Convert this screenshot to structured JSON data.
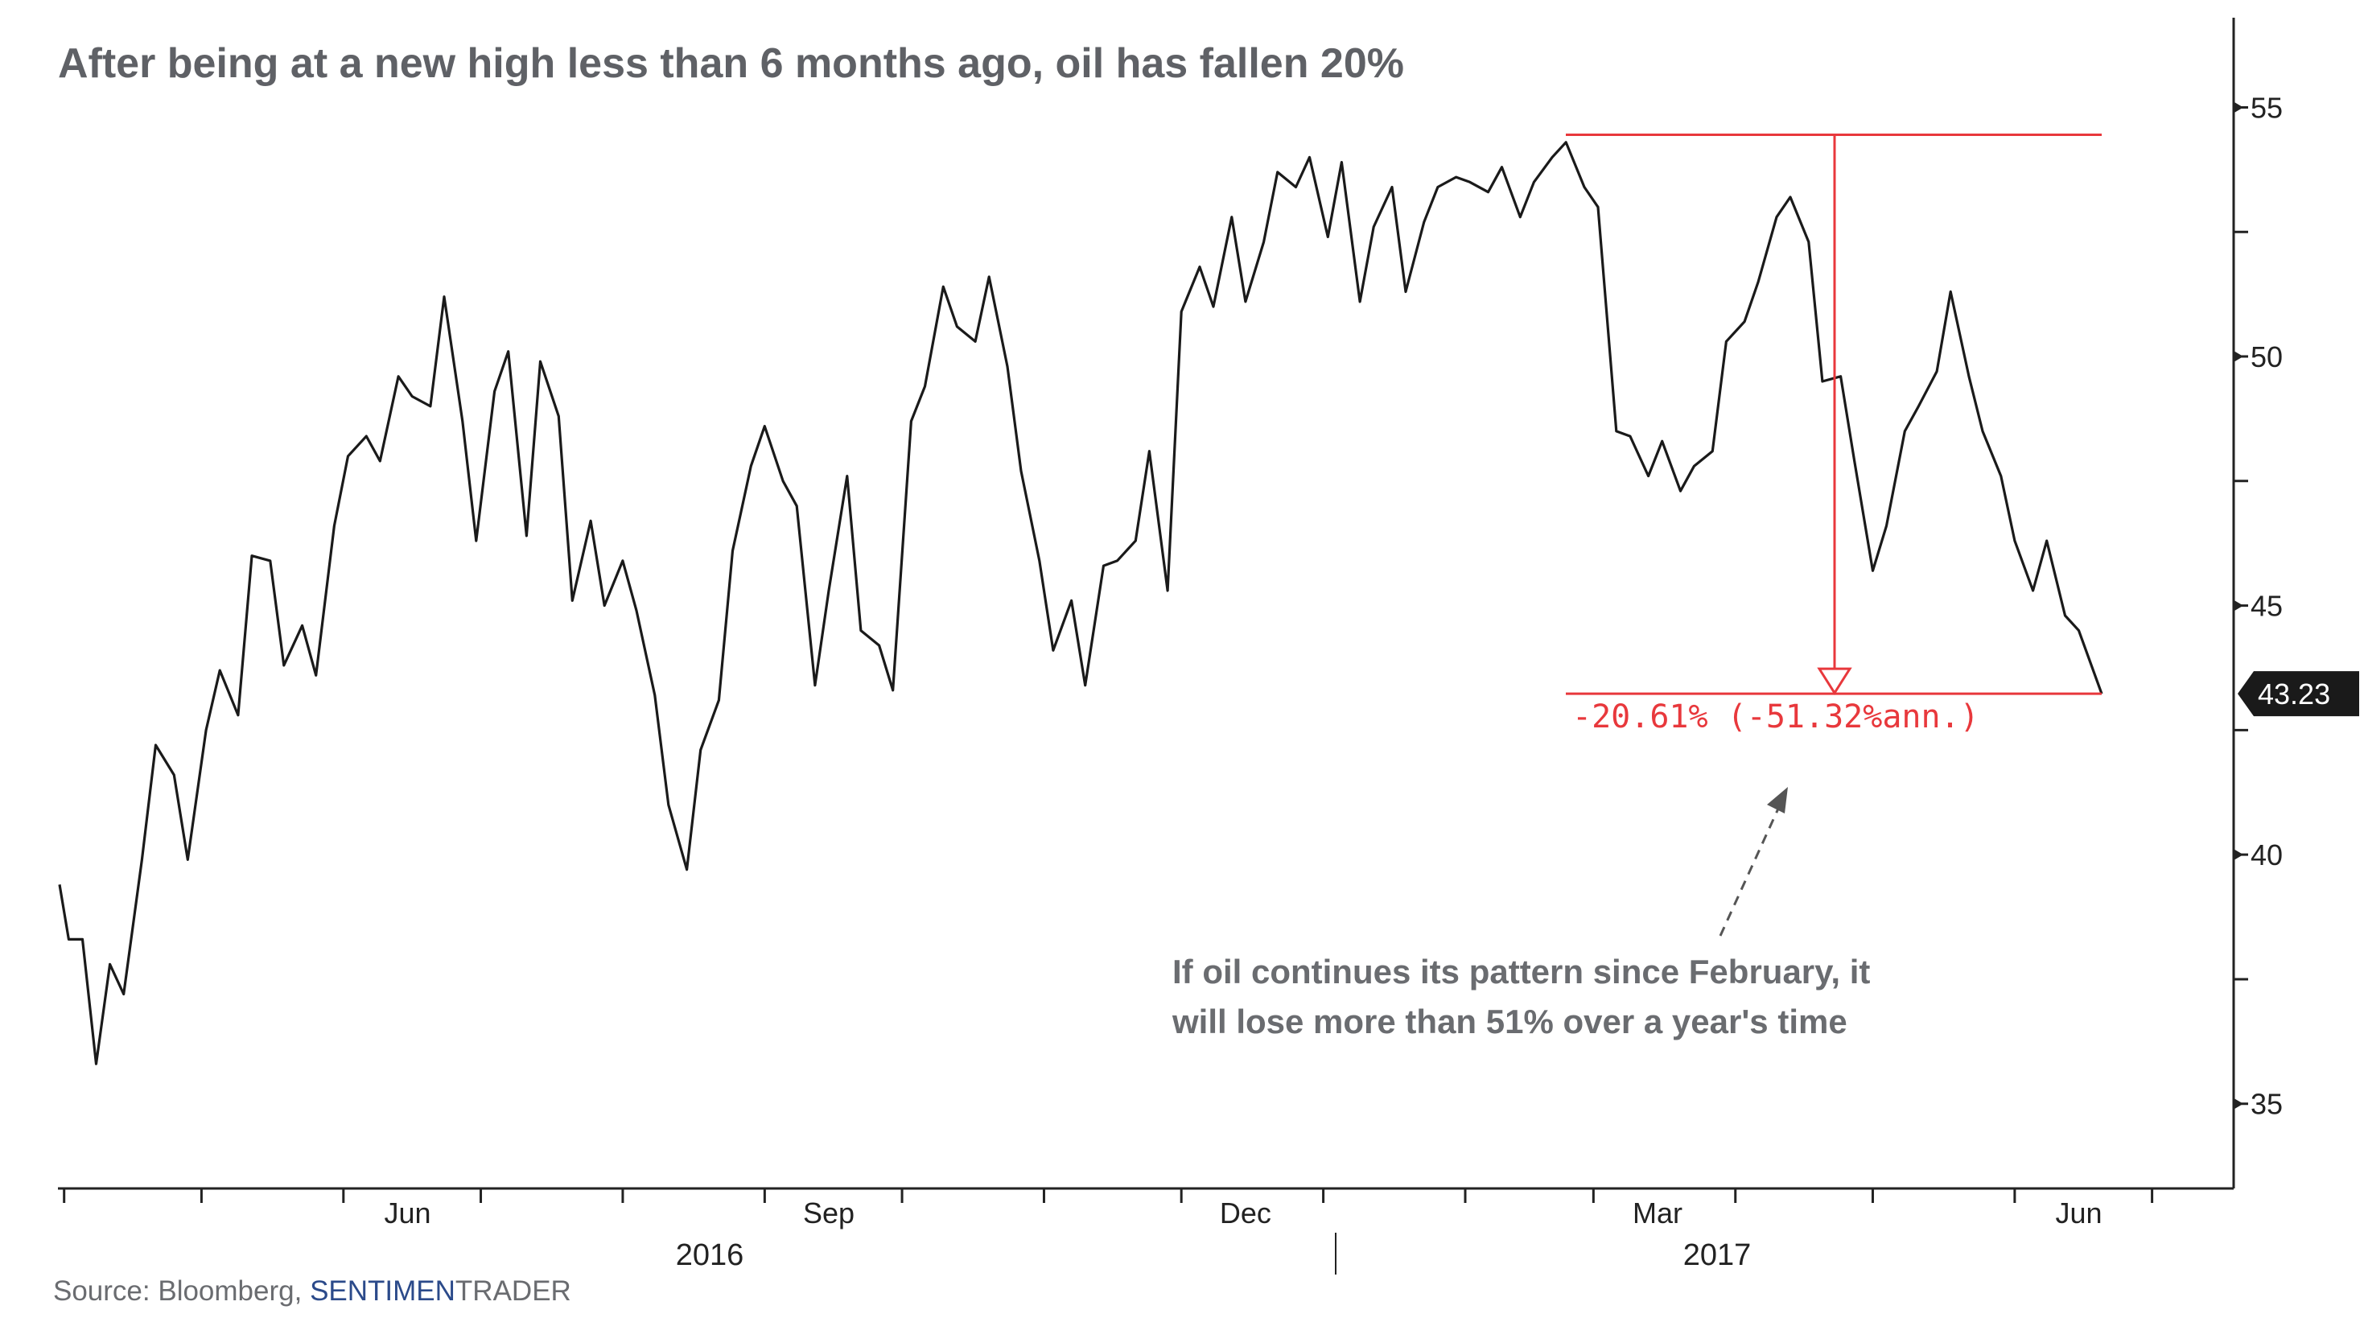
{
  "title": "After being at a new high less than 6 months ago, oil has fallen 20%",
  "annotation": {
    "line1": "If oil continues its pattern since February, it",
    "line2": "will lose more than 51% over a year's time"
  },
  "drawdown_label": "-20.61% (-51.32%ann.)",
  "last_value_label": "43.23",
  "source": {
    "prefix": "Source: Bloomberg, ",
    "brand_a": "SENTIMEN",
    "brand_b": "TRADER"
  },
  "colors": {
    "line": "#1a1a1a",
    "drawdown": "#e8383c",
    "title": "#5f6166",
    "brand": "#2b4a8a",
    "last_value_bg": "#1a1a1a"
  },
  "chart_data": {
    "type": "line",
    "title": "After being at a new high less than 6 months ago, oil has fallen 20%",
    "xlabel": "",
    "ylabel": "",
    "ylim": [
      33.3,
      56.8
    ],
    "yticks": [
      "35",
      "40",
      "45",
      "50",
      "55"
    ],
    "x_month_labels": [
      "Jun",
      "Sep",
      "Dec",
      "Mar",
      "Jun"
    ],
    "x_year_labels": [
      "2016",
      "2017"
    ],
    "grid": false,
    "series": [
      {
        "x": [
          "2016-03-31",
          "2016-04-02",
          "2016-04-05",
          "2016-04-08",
          "2016-04-11",
          "2016-04-14",
          "2016-04-18",
          "2016-04-21",
          "2016-04-25",
          "2016-04-28",
          "2016-05-02",
          "2016-05-05",
          "2016-05-09",
          "2016-05-12",
          "2016-05-16",
          "2016-05-19",
          "2016-05-23",
          "2016-05-26",
          "2016-05-30",
          "2016-06-02",
          "2016-06-06",
          "2016-06-09",
          "2016-06-13",
          "2016-06-16",
          "2016-06-20",
          "2016-06-23",
          "2016-06-27",
          "2016-06-30",
          "2016-07-04",
          "2016-07-07",
          "2016-07-11",
          "2016-07-14",
          "2016-07-18",
          "2016-07-21",
          "2016-07-25",
          "2016-07-28",
          "2016-08-01",
          "2016-08-04",
          "2016-08-08",
          "2016-08-11",
          "2016-08-15",
          "2016-08-18",
          "2016-08-22",
          "2016-08-25",
          "2016-08-29",
          "2016-09-01",
          "2016-09-05",
          "2016-09-08",
          "2016-09-12",
          "2016-09-15",
          "2016-09-19",
          "2016-09-22",
          "2016-09-26",
          "2016-09-29",
          "2016-10-03",
          "2016-10-06",
          "2016-10-10",
          "2016-10-13",
          "2016-10-17",
          "2016-10-20",
          "2016-10-24",
          "2016-10-27",
          "2016-10-31",
          "2016-11-03",
          "2016-11-07",
          "2016-11-10",
          "2016-11-14",
          "2016-11-17",
          "2016-11-21",
          "2016-11-24",
          "2016-11-28",
          "2016-12-01",
          "2016-12-05",
          "2016-12-08",
          "2016-12-12",
          "2016-12-15",
          "2016-12-19",
          "2016-12-22",
          "2016-12-26",
          "2016-12-29",
          "2017-01-02",
          "2017-01-05",
          "2017-01-09",
          "2017-01-12",
          "2017-01-16",
          "2017-01-19",
          "2017-01-23",
          "2017-01-26",
          "2017-01-30",
          "2017-02-02",
          "2017-02-06",
          "2017-02-09",
          "2017-02-13",
          "2017-02-16",
          "2017-02-20",
          "2017-02-23",
          "2017-02-27",
          "2017-03-02",
          "2017-03-06",
          "2017-03-09",
          "2017-03-13",
          "2017-03-16",
          "2017-03-20",
          "2017-03-23",
          "2017-03-27",
          "2017-03-30",
          "2017-04-03",
          "2017-04-06",
          "2017-04-10",
          "2017-04-13",
          "2017-04-17",
          "2017-04-20",
          "2017-04-24",
          "2017-04-27",
          "2017-05-01",
          "2017-05-04",
          "2017-05-08",
          "2017-05-11",
          "2017-05-15",
          "2017-05-18",
          "2017-05-22",
          "2017-05-25",
          "2017-05-29",
          "2017-06-01",
          "2017-06-05",
          "2017-06-08",
          "2017-06-12",
          "2017-06-15",
          "2017-06-20"
        ],
        "y": [
          39.4,
          38.3,
          38.3,
          35.8,
          37.8,
          37.2,
          39.9,
          42.2,
          41.6,
          39.9,
          42.5,
          43.7,
          42.8,
          46.0,
          45.9,
          43.8,
          44.6,
          43.6,
          46.6,
          48.0,
          48.4,
          47.9,
          49.6,
          49.2,
          49.0,
          51.2,
          48.7,
          46.3,
          49.3,
          50.1,
          46.4,
          49.9,
          48.8,
          45.1,
          46.7,
          45.0,
          45.9,
          44.9,
          43.2,
          41.0,
          39.7,
          42.1,
          43.1,
          46.1,
          47.8,
          48.6,
          47.5,
          47.0,
          43.4,
          45.3,
          47.6,
          44.5,
          44.2,
          43.3,
          48.7,
          49.4,
          51.4,
          50.6,
          50.3,
          51.6,
          49.8,
          47.7,
          45.9,
          44.1,
          45.1,
          43.4,
          45.8,
          45.9,
          46.3,
          48.1,
          45.3,
          50.9,
          51.8,
          51.0,
          52.8,
          51.1,
          52.3,
          53.7,
          53.4,
          54.0,
          52.4,
          53.9,
          51.1,
          52.6,
          53.4,
          51.3,
          52.7,
          53.4,
          53.6,
          53.5,
          53.3,
          53.8,
          52.8,
          53.5,
          54.0,
          54.3,
          53.4,
          53.0,
          48.5,
          48.4,
          47.6,
          48.3,
          47.3,
          47.8,
          48.1,
          50.3,
          50.7,
          51.5,
          52.8,
          53.2,
          52.3,
          49.5,
          49.6,
          47.9,
          45.7,
          46.6,
          48.5,
          49.0,
          49.7,
          51.3,
          49.6,
          48.5,
          47.6,
          46.3,
          45.3,
          46.3,
          44.8,
          44.5,
          43.23
        ]
      }
    ],
    "annotations": [
      {
        "type": "drawdown",
        "from": 54.45,
        "to": 43.23,
        "label": "-20.61% (-51.32%ann.)"
      },
      {
        "type": "last_value",
        "value": 43.23,
        "label": "43.23"
      }
    ]
  }
}
